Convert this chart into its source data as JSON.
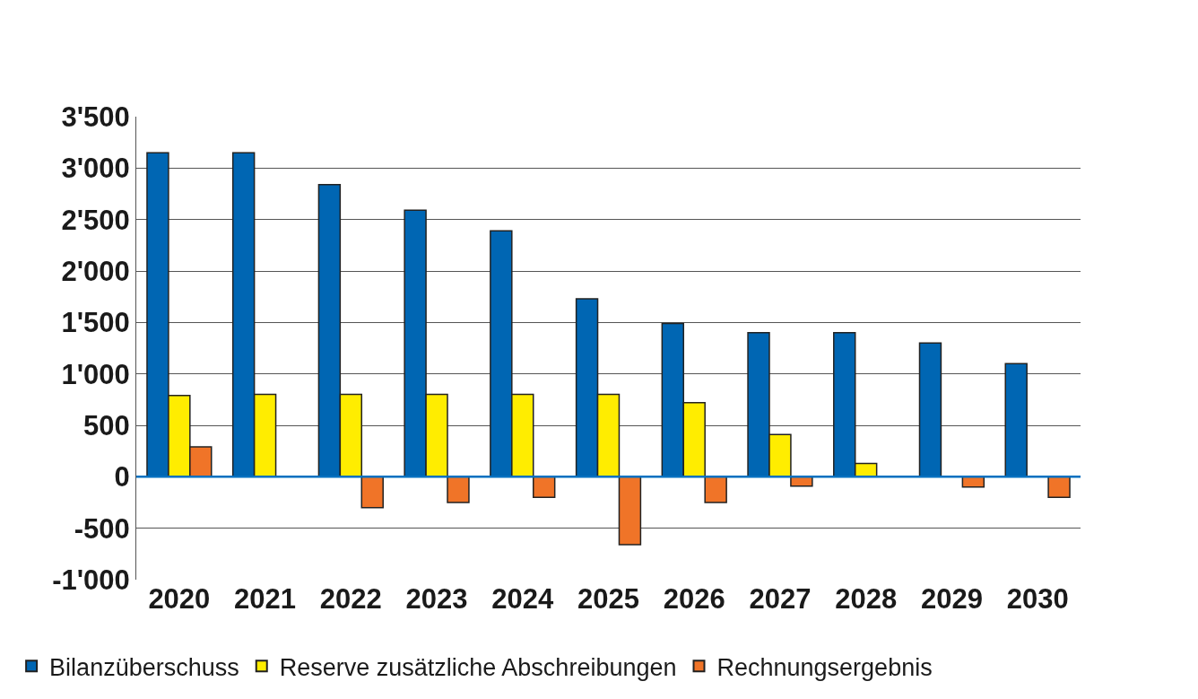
{
  "chart_data": {
    "type": "bar",
    "categories": [
      "2020",
      "2021",
      "2022",
      "2023",
      "2024",
      "2025",
      "2026",
      "2027",
      "2028",
      "2029",
      "2030"
    ],
    "series": [
      {
        "name": "Bilanzüberschuss",
        "color": "#0066b3",
        "values": [
          3150,
          3150,
          2840,
          2590,
          2390,
          1730,
          1490,
          1400,
          1400,
          1300,
          1100
        ]
      },
      {
        "name": "Reserve zusätzliche Abschreibungen",
        "color": "#ffed00",
        "values": [
          790,
          800,
          800,
          800,
          800,
          800,
          720,
          410,
          130,
          null,
          null
        ]
      },
      {
        "name": "Rechnungsergebnis",
        "color": "#f07428",
        "values": [
          290,
          null,
          -300,
          -250,
          -200,
          -660,
          -250,
          -90,
          null,
          -100,
          -200
        ]
      }
    ],
    "ylim": [
      -1000,
      3500
    ],
    "yticks": [
      {
        "value": -1000,
        "label": "-1'000"
      },
      {
        "value": -500,
        "label": "-500"
      },
      0,
      500,
      {
        "value": 1000,
        "label": "1'000"
      },
      {
        "value": 1500,
        "label": "1'500"
      },
      {
        "value": 2000,
        "label": "2'000"
      },
      {
        "value": 2500,
        "label": "2'500"
      },
      {
        "value": 3000,
        "label": "3'000"
      },
      {
        "value": 3500,
        "label": "3'500"
      }
    ],
    "ref_lines": [
      {
        "axis": "y",
        "value": 0,
        "color": "#0070c0"
      }
    ],
    "grid": "y",
    "legend": "bottom"
  }
}
